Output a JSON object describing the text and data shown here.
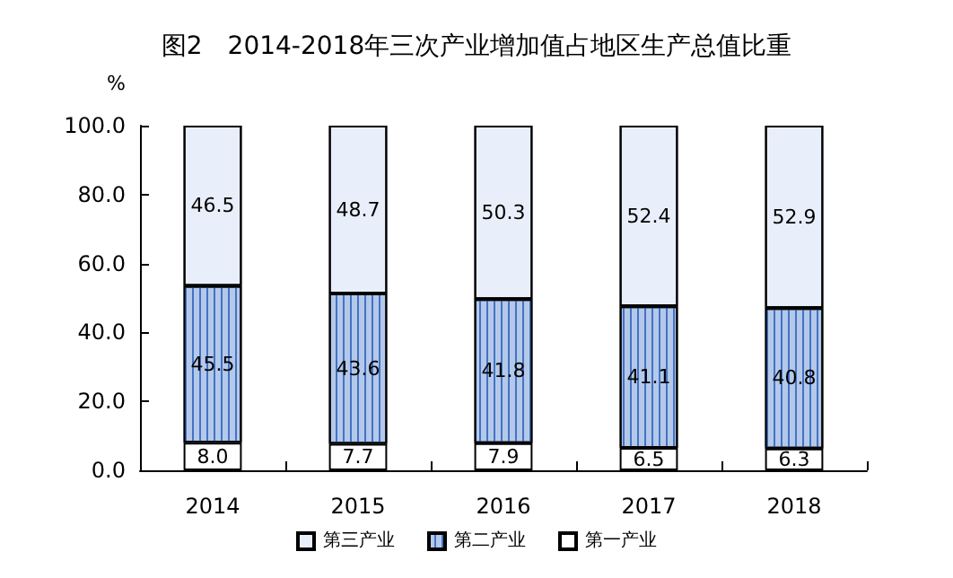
{
  "chart_data": {
    "type": "bar",
    "title": "图2　2014-2018年三次产业增加值占地区生产总值比重",
    "ylabel": "%",
    "categories": [
      "2014",
      "2015",
      "2016",
      "2017",
      "2018"
    ],
    "stacked": true,
    "series": [
      {
        "name": "第一产业",
        "color": "#ffffff",
        "values": [
          8.0,
          7.7,
          7.9,
          6.5,
          6.3
        ],
        "value_labels": [
          "8.0",
          "7.7",
          "7.9",
          "6.5",
          "6.3"
        ]
      },
      {
        "name": "第二产业",
        "color": "#b4c9ea",
        "values": [
          45.5,
          43.6,
          41.8,
          41.1,
          40.8
        ],
        "value_labels": [
          "45.5",
          "43.6",
          "41.8",
          "41.1",
          "40.8"
        ]
      },
      {
        "name": "第三产业",
        "color": "#e9effa",
        "values": [
          46.5,
          48.7,
          50.3,
          52.4,
          52.9
        ],
        "value_labels": [
          "46.5",
          "48.7",
          "50.3",
          "52.4",
          "52.9"
        ]
      }
    ],
    "ylim": [
      0,
      100
    ],
    "yticks": [
      {
        "value": 0,
        "label": "0.0"
      },
      {
        "value": 20,
        "label": "20.0"
      },
      {
        "value": 40,
        "label": "40.0"
      },
      {
        "value": 60,
        "label": "60.0"
      },
      {
        "value": 80,
        "label": "80.0"
      },
      {
        "value": 100,
        "label": "100.0"
      }
    ],
    "grid": false,
    "legend": "bottom"
  }
}
